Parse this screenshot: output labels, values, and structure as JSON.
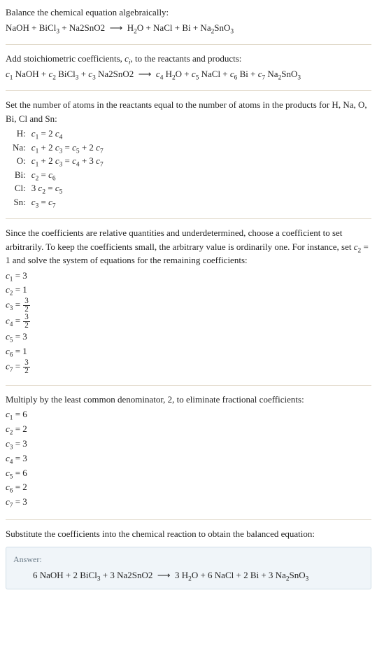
{
  "colors": {
    "text": "#222222",
    "separator": "#e0d8c8",
    "answer_bg": "#f0f5f9",
    "answer_border": "#cfdde7",
    "answer_label": "#6a7a87"
  },
  "s1": {
    "title": "Balance the chemical equation algebraically:",
    "eq_html": "NaOH + BiCl<sub>3</sub> + Na2SnO2 &nbsp;&#10230;&nbsp; H<sub>2</sub>O + NaCl + Bi + Na<sub>2</sub>SnO<sub>3</sub>"
  },
  "s2": {
    "title_html": "Add stoichiometric coefficients, <i>c<sub>i</sub></i>, to the reactants and products:",
    "eq_html": "<i>c</i><sub>1</sub> NaOH + <i>c</i><sub>2</sub> BiCl<sub>3</sub> + <i>c</i><sub>3</sub> Na2SnO2 &nbsp;&#10230;&nbsp; <i>c</i><sub>4</sub> H<sub>2</sub>O + <i>c</i><sub>5</sub> NaCl + <i>c</i><sub>6</sub> Bi + <i>c</i><sub>7</sub> Na<sub>2</sub>SnO<sub>3</sub>"
  },
  "s3": {
    "intro": "Set the number of atoms in the reactants equal to the number of atoms in the products for H, Na, O, Bi, Cl and Sn:",
    "rows": [
      {
        "label": "H:",
        "rhs_html": "<i>c</i><sub>1</sub> = 2 <i>c</i><sub>4</sub>"
      },
      {
        "label": "Na:",
        "rhs_html": "<i>c</i><sub>1</sub> + 2 <i>c</i><sub>3</sub> = <i>c</i><sub>5</sub> + 2 <i>c</i><sub>7</sub>"
      },
      {
        "label": "O:",
        "rhs_html": "<i>c</i><sub>1</sub> + 2 <i>c</i><sub>3</sub> = <i>c</i><sub>4</sub> + 3 <i>c</i><sub>7</sub>"
      },
      {
        "label": "Bi:",
        "rhs_html": "<i>c</i><sub>2</sub> = <i>c</i><sub>6</sub>"
      },
      {
        "label": "Cl:",
        "rhs_html": "3 <i>c</i><sub>2</sub> = <i>c</i><sub>5</sub>"
      },
      {
        "label": "Sn:",
        "rhs_html": "<i>c</i><sub>3</sub> = <i>c</i><sub>7</sub>"
      }
    ]
  },
  "s4": {
    "intro_html": "Since the coefficients are relative quantities and underdetermined, choose a coefficient to set arbitrarily. To keep the coefficients small, the arbitrary value is ordinarily one. For instance, set <i>c</i><sub>2</sub> = 1 and solve the system of equations for the remaining coefficients:",
    "rows": [
      {
        "html": "<i>c</i><sub>1</sub> = 3"
      },
      {
        "html": "<i>c</i><sub>2</sub> = 1"
      },
      {
        "html": "<i>c</i><sub>3</sub> = <span class=\"frac\"><span class=\"num\">3</span><span class=\"den\">2</span></span>"
      },
      {
        "html": "<i>c</i><sub>4</sub> = <span class=\"frac\"><span class=\"num\">3</span><span class=\"den\">2</span></span>"
      },
      {
        "html": "<i>c</i><sub>5</sub> = 3"
      },
      {
        "html": "<i>c</i><sub>6</sub> = 1"
      },
      {
        "html": "<i>c</i><sub>7</sub> = <span class=\"frac\"><span class=\"num\">3</span><span class=\"den\">2</span></span>"
      }
    ]
  },
  "s5": {
    "intro": "Multiply by the least common denominator, 2, to eliminate fractional coefficients:",
    "rows": [
      {
        "html": "<i>c</i><sub>1</sub> = 6"
      },
      {
        "html": "<i>c</i><sub>2</sub> = 2"
      },
      {
        "html": "<i>c</i><sub>3</sub> = 3"
      },
      {
        "html": "<i>c</i><sub>4</sub> = 3"
      },
      {
        "html": "<i>c</i><sub>5</sub> = 6"
      },
      {
        "html": "<i>c</i><sub>6</sub> = 2"
      },
      {
        "html": "<i>c</i><sub>7</sub> = 3"
      }
    ]
  },
  "s6": {
    "intro": "Substitute the coefficients into the chemical reaction to obtain the balanced equation:",
    "answer_label": "Answer:",
    "answer_html": "6 NaOH + 2 BiCl<sub>3</sub> + 3 Na2SnO2 &nbsp;&#10230;&nbsp; 3 H<sub>2</sub>O + 6 NaCl + 2 Bi + 3 Na<sub>2</sub>SnO<sub>3</sub>"
  }
}
